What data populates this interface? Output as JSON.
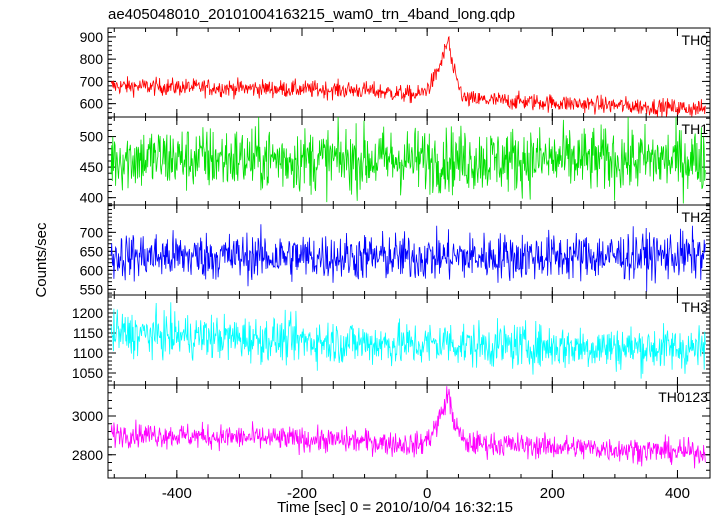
{
  "title": "ae405048010_20101004163215_wam0_trn_4band_long.qdp",
  "chart_data": [
    {
      "type": "line",
      "series": [
        {
          "name": "TH0",
          "color": "#ff0000"
        }
      ],
      "ylim": [
        540,
        940
      ],
      "yticks": [
        600,
        700,
        800,
        900
      ],
      "xlim": [
        -510,
        452
      ],
      "shape": {
        "start": 680,
        "mid": 660,
        "pre_peak": 640,
        "peak": 900,
        "post_decay": 620,
        "end": 575,
        "noise": 28
      }
    },
    {
      "type": "line",
      "series": [
        {
          "name": "TH1",
          "color": "#00e000"
        }
      ],
      "ylim": [
        388,
        532
      ],
      "yticks": [
        400,
        450,
        500
      ],
      "xlim": [
        -510,
        452
      ],
      "shape": {
        "start": 465,
        "mid": 462,
        "pre_peak": 462,
        "peak": 462,
        "post_decay": 462,
        "end": 462,
        "noise": 38
      }
    },
    {
      "type": "line",
      "series": [
        {
          "name": "TH2",
          "color": "#0000ff"
        }
      ],
      "ylim": [
        535,
        772
      ],
      "yticks": [
        550,
        600,
        650,
        700
      ],
      "xlim": [
        -510,
        452
      ],
      "shape": {
        "start": 638,
        "mid": 635,
        "pre_peak": 635,
        "peak": 635,
        "post_decay": 635,
        "end": 640,
        "noise": 45
      }
    },
    {
      "type": "line",
      "series": [
        {
          "name": "TH3",
          "color": "#00ffff"
        }
      ],
      "ylim": [
        1020,
        1245
      ],
      "yticks": [
        1050,
        1100,
        1150,
        1200
      ],
      "xlim": [
        -510,
        452
      ],
      "shape": {
        "start": 1150,
        "mid": 1125,
        "pre_peak": 1120,
        "peak": 1130,
        "post_decay": 1120,
        "end": 1110,
        "noise": 40
      }
    },
    {
      "type": "line",
      "series": [
        {
          "name": "TH0123",
          "color": "#ff00ff"
        }
      ],
      "ylim": [
        2680,
        3160
      ],
      "yticks": [
        2800,
        3000
      ],
      "xlim": [
        -510,
        452
      ],
      "shape": {
        "start": 2910,
        "mid": 2870,
        "pre_peak": 2850,
        "peak": 3130,
        "post_decay": 2860,
        "end": 2810,
        "noise": 45
      }
    }
  ],
  "xaxis": {
    "label": "Time [sec] 0 = 2010/10/04 16:32:15",
    "ticks": [
      -400,
      -200,
      0,
      200,
      400
    ]
  },
  "ylabel": "Counts/sec"
}
